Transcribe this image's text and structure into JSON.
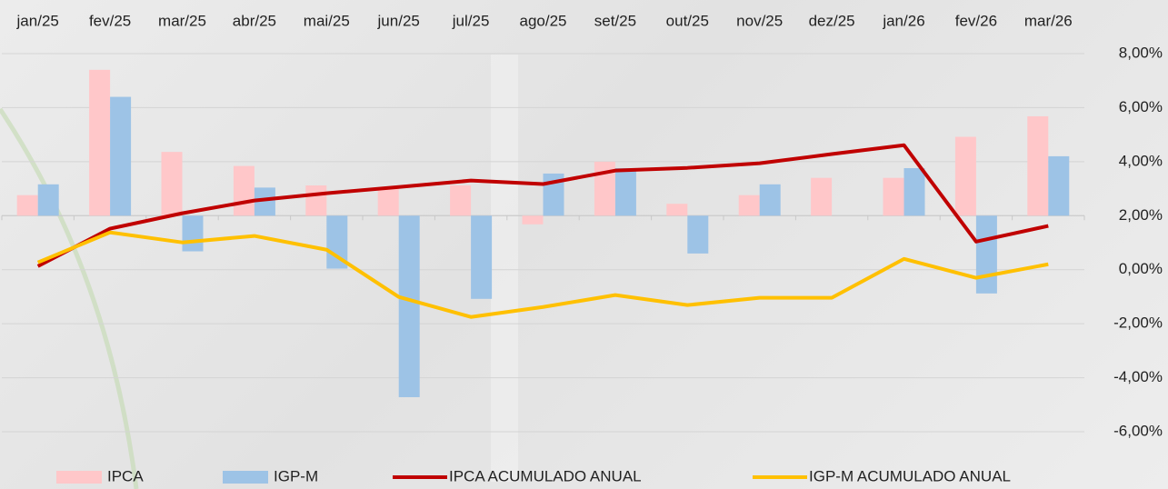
{
  "chart_data": {
    "type": "bar-line",
    "categories": [
      "jan/25",
      "fev/25",
      "mar/25",
      "abr/25",
      "mai/25",
      "jun/25",
      "jul/25",
      "ago/25",
      "set/25",
      "out/25",
      "nov/25",
      "dez/25",
      "jan/26",
      "fev/26",
      "mar/26"
    ],
    "ylim": [
      -2,
      1.5
    ],
    "y2lim": [
      -6,
      8
    ],
    "y2ticks": [
      {
        "value": 8,
        "label": "8,00%"
      },
      {
        "value": 6,
        "label": "6,00%"
      },
      {
        "value": 4,
        "label": "4,00%"
      },
      {
        "value": 2,
        "label": "2,00%"
      },
      {
        "value": 0,
        "label": "0,00%"
      },
      {
        "value": -2,
        "label": "-2,00%"
      },
      {
        "value": -4,
        "label": "-4,00%"
      },
      {
        "value": -6,
        "label": "-6,00%"
      }
    ],
    "legend": "bottom",
    "series": [
      {
        "name": "IPCA",
        "type": "bar",
        "color": "#ffc7c9",
        "values": [
          0.19,
          1.35,
          0.59,
          0.46,
          0.28,
          0.25,
          0.28,
          -0.08,
          0.5,
          0.11,
          0.19,
          0.35,
          0.35,
          0.73,
          0.92
        ]
      },
      {
        "name": "IGP-M",
        "type": "bar",
        "color": "#9dc3e6",
        "values": [
          0.29,
          1.1,
          -0.33,
          0.26,
          -0.49,
          -1.68,
          -0.77,
          0.39,
          0.44,
          -0.35,
          0.29,
          0,
          0.44,
          -0.72,
          0.55
        ]
      },
      {
        "name": "IPCA ACUMULADO ANUAL",
        "type": "line",
        "axis": "y2",
        "color": "#c00000",
        "values": [
          0.13,
          1.52,
          2.09,
          2.56,
          2.83,
          3.06,
          3.3,
          3.17,
          3.67,
          3.77,
          3.94,
          4.28,
          4.61,
          1.04,
          1.62
        ]
      },
      {
        "name": "IGP-M ACUMULADO ANUAL",
        "type": "line",
        "axis": "y2",
        "color": "#ffc000",
        "values": [
          0.27,
          1.38,
          1.01,
          1.25,
          0.74,
          -1.01,
          -1.75,
          -1.38,
          -0.94,
          -1.31,
          -1.04,
          -1.04,
          0.4,
          -0.3,
          0.2
        ]
      }
    ]
  }
}
